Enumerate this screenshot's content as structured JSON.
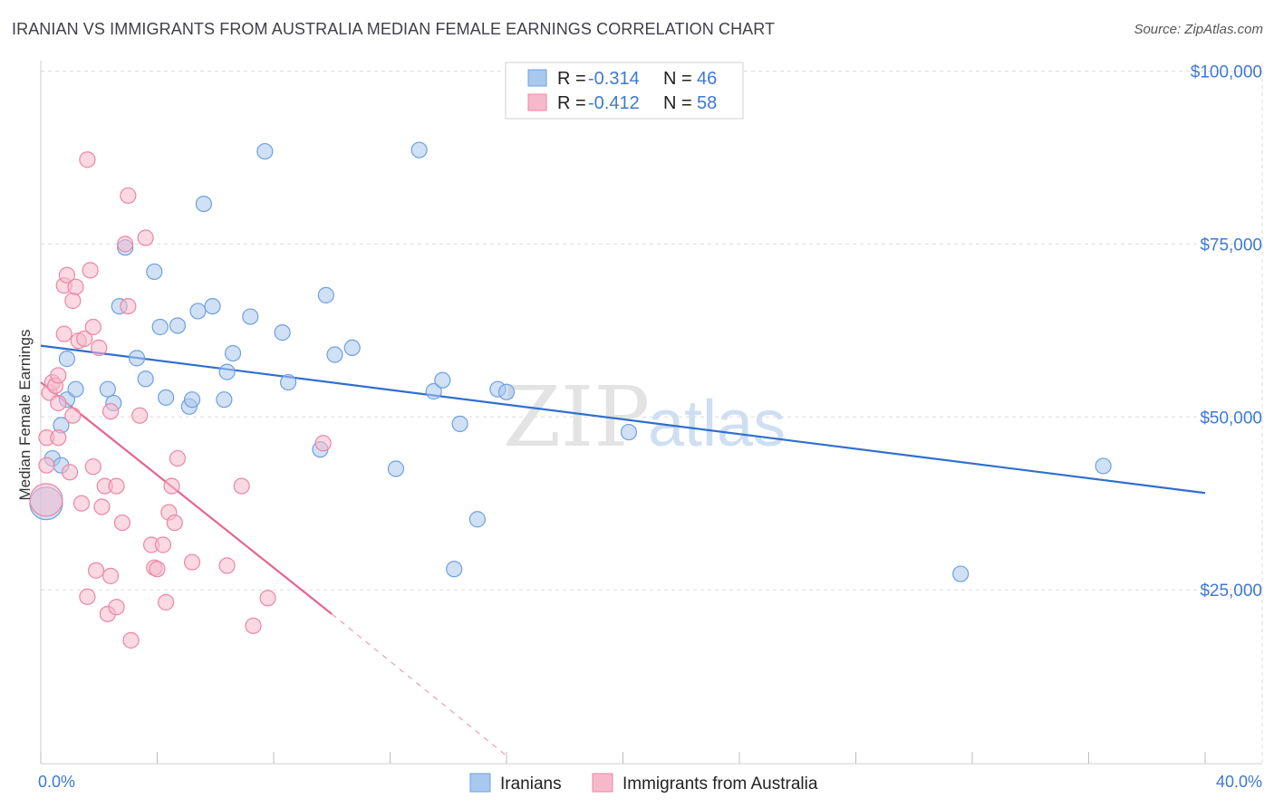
{
  "title": "IRANIAN VS IMMIGRANTS FROM AUSTRALIA MEDIAN FEMALE EARNINGS CORRELATION CHART",
  "source": "Source: ZipAtlas.com",
  "watermark": {
    "zip": "ZIP",
    "atlas": "atlas"
  },
  "legend": {
    "rows": [
      {
        "r_label": "R =",
        "r_value": "-0.314",
        "n_label": "N =",
        "n_value": "46",
        "color": "#a9c8ef"
      },
      {
        "r_label": "R =",
        "r_value": "-0.412",
        "n_label": "N =",
        "n_value": "58",
        "color": "#f6b9cc"
      }
    ]
  },
  "bottom_legend": [
    "Iranians",
    "Immigrants from Australia"
  ],
  "chart_data": {
    "type": "scatter",
    "title": "IRANIAN VS IMMIGRANTS FROM AUSTRALIA MEDIAN FEMALE EARNINGS CORRELATION CHART",
    "xlabel": "",
    "ylabel": "Median Female Earnings",
    "xlim": [
      0,
      40
    ],
    "ylim": [
      0,
      105000
    ],
    "x_tick_labels": [
      "0.0%",
      "40.0%"
    ],
    "y_ticks": [
      25000,
      50000,
      75000,
      100000
    ],
    "y_tick_labels": [
      "$25,000",
      "$50,000",
      "$75,000",
      "$100,000"
    ],
    "series": [
      {
        "name": "Iranians",
        "color": "#6ea0e0",
        "fill": "#a9c8ef",
        "r": -0.314,
        "n": 46,
        "trend": {
          "x": [
            0,
            40
          ],
          "y": [
            60300,
            39000
          ]
        },
        "points": [
          [
            0.0,
            37500,
            "big"
          ],
          [
            0.4,
            44000
          ],
          [
            0.7,
            43000
          ],
          [
            0.7,
            48800
          ],
          [
            0.9,
            58400
          ],
          [
            0.9,
            52500
          ],
          [
            1.2,
            54000
          ],
          [
            2.3,
            54000
          ],
          [
            2.5,
            52000
          ],
          [
            2.7,
            66000
          ],
          [
            2.9,
            74500
          ],
          [
            3.3,
            58500
          ],
          [
            3.6,
            55500
          ],
          [
            3.9,
            71000
          ],
          [
            4.1,
            63000
          ],
          [
            4.3,
            52800
          ],
          [
            4.7,
            63200
          ],
          [
            5.1,
            51500
          ],
          [
            5.2,
            52500
          ],
          [
            5.4,
            65300
          ],
          [
            5.6,
            80800
          ],
          [
            5.9,
            66000
          ],
          [
            6.4,
            56500
          ],
          [
            6.6,
            59200
          ],
          [
            6.3,
            52500
          ],
          [
            7.2,
            64500
          ],
          [
            7.7,
            88400
          ],
          [
            8.3,
            62200
          ],
          [
            8.5,
            55000
          ],
          [
            9.6,
            45300
          ],
          [
            9.8,
            67600
          ],
          [
            10.1,
            59000
          ],
          [
            10.7,
            60000
          ],
          [
            12.2,
            42500
          ],
          [
            13.0,
            88600
          ],
          [
            13.5,
            53700
          ],
          [
            13.8,
            55300
          ],
          [
            14.2,
            28000
          ],
          [
            14.4,
            49000
          ],
          [
            15.0,
            35200
          ],
          [
            15.7,
            54000
          ],
          [
            16.0,
            53600
          ],
          [
            20.2,
            47800
          ],
          [
            31.6,
            27300
          ],
          [
            36.5,
            42900
          ]
        ]
      },
      {
        "name": "Immigrants from Australia",
        "color": "#ec86a4",
        "fill": "#f6b9cc",
        "r": -0.412,
        "n": 58,
        "trend": {
          "x": [
            0,
            10
          ],
          "y": [
            55000,
            21500
          ]
        },
        "trend_dashed": {
          "x": [
            10,
            16
          ],
          "y": [
            21500,
            1000
          ]
        },
        "points": [
          [
            0.0,
            38000,
            "big"
          ],
          [
            0.2,
            47000
          ],
          [
            0.2,
            43000
          ],
          [
            0.3,
            53500
          ],
          [
            0.4,
            55000
          ],
          [
            0.5,
            54500
          ],
          [
            0.6,
            52000
          ],
          [
            0.6,
            56000
          ],
          [
            0.6,
            47000
          ],
          [
            0.8,
            62000
          ],
          [
            0.8,
            69000
          ],
          [
            0.9,
            70500
          ],
          [
            1.0,
            42000
          ],
          [
            1.1,
            66800
          ],
          [
            1.1,
            50200
          ],
          [
            1.2,
            68800
          ],
          [
            1.3,
            61000
          ],
          [
            1.4,
            37500
          ],
          [
            1.5,
            61300
          ],
          [
            1.6,
            87200
          ],
          [
            1.6,
            24000
          ],
          [
            1.7,
            71200
          ],
          [
            1.8,
            42800
          ],
          [
            1.8,
            63000
          ],
          [
            1.9,
            27800
          ],
          [
            2.0,
            60000
          ],
          [
            2.1,
            37000
          ],
          [
            2.2,
            40000
          ],
          [
            2.3,
            21500
          ],
          [
            2.4,
            27000
          ],
          [
            2.4,
            50800
          ],
          [
            2.6,
            22500
          ],
          [
            2.6,
            40000
          ],
          [
            2.8,
            34700
          ],
          [
            2.9,
            75000
          ],
          [
            3.0,
            66000
          ],
          [
            3.0,
            82000
          ],
          [
            3.1,
            17700
          ],
          [
            3.4,
            50200
          ],
          [
            3.6,
            75900
          ],
          [
            3.8,
            31500
          ],
          [
            3.9,
            28200
          ],
          [
            4.0,
            28000
          ],
          [
            4.2,
            31500
          ],
          [
            4.3,
            23200
          ],
          [
            4.4,
            36200
          ],
          [
            4.5,
            40000
          ],
          [
            4.6,
            34700
          ],
          [
            4.7,
            44000
          ],
          [
            5.2,
            29000
          ],
          [
            6.4,
            28500
          ],
          [
            6.9,
            40000
          ],
          [
            7.3,
            19800
          ],
          [
            7.8,
            23800
          ],
          [
            9.7,
            46200
          ]
        ]
      }
    ]
  }
}
